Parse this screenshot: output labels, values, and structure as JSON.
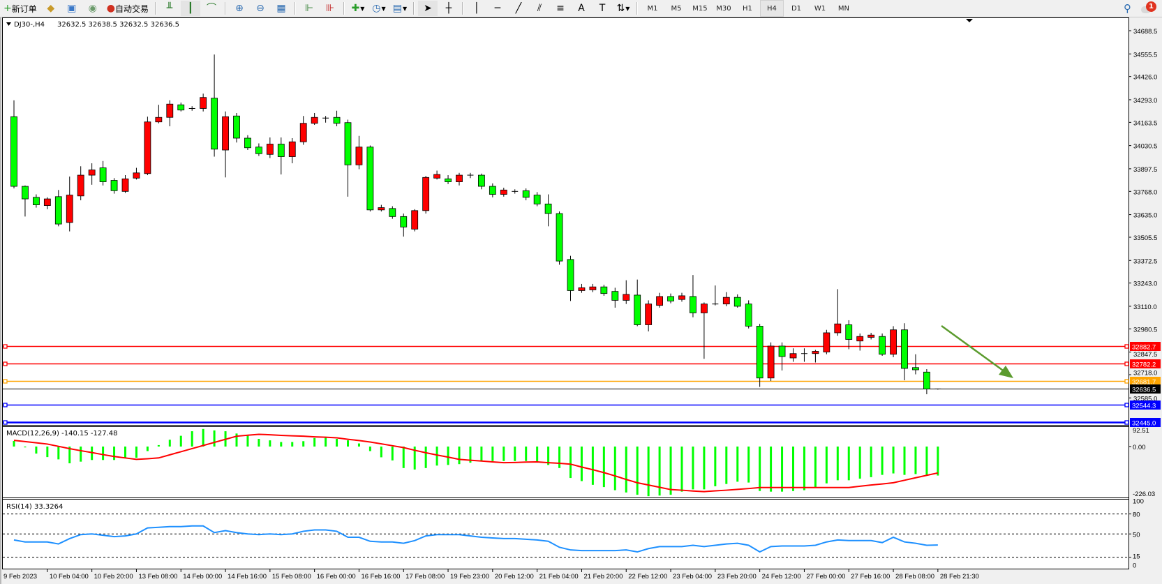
{
  "toolbar": {
    "new_order_label": "新订单",
    "auto_trading_label": "自动交易",
    "timeframes": [
      "M1",
      "M5",
      "M15",
      "M30",
      "H1",
      "H4",
      "D1",
      "W1",
      "MN"
    ],
    "active_timeframe": "H4",
    "notification_count": "1",
    "icons": [
      "new-order-icon",
      "market-watch-icon",
      "navigator-icon",
      "signals-icon",
      "auto-trading-icon",
      "bar-chart-icon",
      "candlestick-icon",
      "line-chart-icon",
      "zoom-in-icon",
      "zoom-out-icon",
      "tile-windows-icon",
      "chart-shift-icon",
      "autoscroll-icon",
      "indicators-icon",
      "periods-icon",
      "templates-icon",
      "cursor-icon",
      "crosshair-icon",
      "vertical-line-icon",
      "horizontal-line-icon",
      "trendline-icon",
      "fibonacci-icon",
      "fibo-expansion-icon",
      "text-icon",
      "text-label-icon",
      "arrows-icon",
      "search-icon",
      "notifications-icon"
    ]
  },
  "chart_header": {
    "symbol": "DJ30-,H4",
    "ohlc": "32632.5 32638.5 32632.5 32636.5"
  },
  "colors": {
    "bull_body": "#ff0000",
    "bear_body": "#00ff00",
    "wick": "#000000",
    "macd_hist": "#00ff00",
    "macd_signal": "#ff0000",
    "rsi_line": "#1e90ff",
    "arrow": "#5b9b2e"
  },
  "chart_data": {
    "type": "candlestick",
    "symbol": "DJ30-",
    "timeframe": "H4",
    "candles_ohlc": [
      [
        34196,
        34290,
        33785,
        33797
      ],
      [
        33797,
        33802,
        33624,
        33725
      ],
      [
        33734,
        33751,
        33675,
        33691
      ],
      [
        33687,
        33734,
        33666,
        33725
      ],
      [
        33738,
        33776,
        33568,
        33581
      ],
      [
        33590,
        33853,
        33539,
        33747
      ],
      [
        33742,
        33912,
        33717,
        33861
      ],
      [
        33861,
        33929,
        33806,
        33891
      ],
      [
        33903,
        33942,
        33802,
        33823
      ],
      [
        33831,
        33844,
        33755,
        33772
      ],
      [
        33768,
        33861,
        33759,
        33840
      ],
      [
        33844,
        33903,
        33836,
        33874
      ],
      [
        33870,
        34196,
        33861,
        34166
      ],
      [
        34166,
        34264,
        34158,
        34192
      ],
      [
        34192,
        34290,
        34141,
        34268
      ],
      [
        34264,
        34277,
        34226,
        34234
      ],
      [
        34243,
        34256,
        34230,
        34243
      ],
      [
        34243,
        34328,
        34226,
        34306
      ],
      [
        34302,
        34552,
        33967,
        34010
      ],
      [
        34005,
        34226,
        33848,
        34196
      ],
      [
        34200,
        34217,
        34048,
        34073
      ],
      [
        34073,
        34090,
        34005,
        34018
      ],
      [
        34022,
        34043,
        33971,
        33984
      ],
      [
        33980,
        34077,
        33959,
        34039
      ],
      [
        34039,
        34077,
        33865,
        33967
      ],
      [
        33967,
        34073,
        33929,
        34052
      ],
      [
        34052,
        34200,
        34035,
        34158
      ],
      [
        34158,
        34217,
        34149,
        34192
      ],
      [
        34188,
        34200,
        34162,
        34188
      ],
      [
        34192,
        34230,
        34141,
        34158
      ],
      [
        34162,
        34179,
        33738,
        33920
      ],
      [
        33920,
        34086,
        33895,
        34022
      ],
      [
        34022,
        34031,
        33653,
        33662
      ],
      [
        33662,
        33691,
        33653,
        33675
      ],
      [
        33670,
        33683,
        33611,
        33624
      ],
      [
        33624,
        33641,
        33509,
        33564
      ],
      [
        33552,
        33666,
        33539,
        33658
      ],
      [
        33658,
        33857,
        33641,
        33848
      ],
      [
        33844,
        33887,
        33836,
        33865
      ],
      [
        33840,
        33861,
        33810,
        33823
      ],
      [
        33823,
        33874,
        33802,
        33861
      ],
      [
        33861,
        33874,
        33844,
        33861
      ],
      [
        33861,
        33870,
        33780,
        33797
      ],
      [
        33797,
        33814,
        33734,
        33751
      ],
      [
        33751,
        33789,
        33738,
        33776
      ],
      [
        33768,
        33780,
        33755,
        33768
      ],
      [
        33772,
        33785,
        33717,
        33734
      ],
      [
        33747,
        33764,
        33683,
        33696
      ],
      [
        33696,
        33751,
        33568,
        33641
      ],
      [
        33641,
        33653,
        33348,
        33369
      ],
      [
        33378,
        33399,
        33140,
        33200
      ],
      [
        33200,
        33238,
        33187,
        33216
      ],
      [
        33204,
        33238,
        33191,
        33221
      ],
      [
        33221,
        33233,
        33170,
        33183
      ],
      [
        33195,
        33216,
        33102,
        33144
      ],
      [
        33144,
        33259,
        33123,
        33178
      ],
      [
        33174,
        33263,
        32996,
        33004
      ],
      [
        33004,
        33144,
        32966,
        33123
      ],
      [
        33115,
        33187,
        33102,
        33166
      ],
      [
        33166,
        33183,
        33127,
        33140
      ],
      [
        33149,
        33187,
        33136,
        33170
      ],
      [
        33166,
        33289,
        33047,
        33072
      ],
      [
        33072,
        33132,
        32809,
        33123
      ],
      [
        33123,
        33229,
        33115,
        33123
      ],
      [
        33123,
        33191,
        33110,
        33161
      ],
      [
        33161,
        33178,
        33102,
        33110
      ],
      [
        33123,
        33144,
        32983,
        32996
      ],
      [
        32996,
        33009,
        32648,
        32699
      ],
      [
        32699,
        32903,
        32682,
        32882
      ],
      [
        32882,
        32903,
        32742,
        32822
      ],
      [
        32814,
        32869,
        32792,
        32839
      ],
      [
        32839,
        32869,
        32792,
        32839
      ],
      [
        32839,
        32860,
        32788,
        32852
      ],
      [
        32848,
        32975,
        32835,
        32958
      ],
      [
        32958,
        33208,
        32941,
        33009
      ],
      [
        33004,
        33030,
        32864,
        32920
      ],
      [
        32911,
        32954,
        32856,
        32937
      ],
      [
        32932,
        32958,
        32920,
        32945
      ],
      [
        32937,
        32954,
        32826,
        32835
      ],
      [
        32835,
        32996,
        32818,
        32975
      ],
      [
        32975,
        33013,
        32686,
        32754
      ],
      [
        32759,
        32835,
        32720,
        32746
      ],
      [
        32733,
        32750,
        32606,
        32636
      ],
      [
        32632.5,
        32638.5,
        32632.5,
        32636.5
      ]
    ],
    "price_axis": {
      "range": [
        32429,
        34752
      ],
      "ticks": [
        "34688.5",
        "34555.5",
        "34426.0",
        "34293.0",
        "34163.5",
        "34030.5",
        "33897.5",
        "33768.0",
        "33635.0",
        "33505.5",
        "33372.5",
        "33243.0",
        "33110.0",
        "32980.5",
        "32847.5",
        "32718.0",
        "32585.0"
      ]
    },
    "levels": [
      {
        "price": 32882.7,
        "label": "32882.7",
        "color": "#ff0000"
      },
      {
        "price": 32782.2,
        "label": "32782.2",
        "color": "#ff0000"
      },
      {
        "price": 32681.7,
        "label": "32681.7",
        "color": "#ffa500"
      },
      {
        "price": 32636.5,
        "label": "32636.5",
        "color": "#000000"
      },
      {
        "price": 32544.3,
        "label": "32544.3",
        "color": "#0000ff"
      },
      {
        "price": 32445.0,
        "label": "32445.0",
        "color": "#0000ff"
      }
    ],
    "time_labels": [
      "9 Feb 2023",
      "10 Feb 04:00",
      "10 Feb 20:00",
      "13 Feb 08:00",
      "14 Feb 00:00",
      "14 Feb 16:00",
      "15 Feb 08:00",
      "16 Feb 00:00",
      "16 Feb 16:00",
      "17 Feb 08:00",
      "19 Feb 23:00",
      "20 Feb 12:00",
      "21 Feb 04:00",
      "21 Feb 20:00",
      "22 Feb 12:00",
      "23 Feb 04:00",
      "23 Feb 20:00",
      "24 Feb 12:00",
      "27 Feb 00:00",
      "27 Feb 16:00",
      "28 Feb 08:00",
      "28 Feb 21:30"
    ],
    "macd": {
      "label": "MACD(12,26,9) -140.15 -127.48",
      "axis_labels": [
        {
          "value": 92.51,
          "text": "92.51"
        },
        {
          "value": 0,
          "text": "0.00"
        },
        {
          "value": -226.03,
          "text": "-226.03"
        }
      ],
      "histogram": [
        27,
        -4,
        -34,
        -51,
        -62,
        -81,
        -73,
        -65,
        -65,
        -65,
        -54,
        -54,
        -22,
        7,
        33,
        52,
        74,
        85,
        78,
        74,
        63,
        52,
        37,
        30,
        22,
        22,
        26,
        41,
        44,
        37,
        30,
        15,
        -22,
        -52,
        -67,
        -104,
        -111,
        -104,
        -92,
        -89,
        -85,
        -78,
        -70,
        -70,
        -70,
        -70,
        -70,
        -74,
        -89,
        -104,
        -152,
        -167,
        -185,
        -196,
        -211,
        -222,
        -233,
        -240,
        -237,
        -233,
        -218,
        -207,
        -207,
        -192,
        -181,
        -170,
        -174,
        -215,
        -218,
        -218,
        -215,
        -211,
        -200,
        -178,
        -163,
        -163,
        -155,
        -148,
        -137,
        -130,
        -137,
        -133,
        -141,
        -140.15
      ],
      "signal": [
        30,
        24,
        18,
        12,
        1,
        -10,
        -20,
        -29,
        -39,
        -48,
        -55,
        -62,
        -59,
        -55,
        -40,
        -25,
        -10,
        5,
        20,
        35,
        50,
        55,
        59,
        57,
        54,
        52,
        50,
        47,
        45,
        42,
        35,
        29,
        22,
        13,
        4,
        -5,
        -18,
        -30,
        -41,
        -51,
        -62,
        -66,
        -70,
        -74,
        -78,
        -77,
        -75,
        -74,
        -78,
        -81,
        -85,
        -99,
        -112,
        -126,
        -142,
        -159,
        -175,
        -186,
        -197,
        -208,
        -211,
        -215,
        -218,
        -214,
        -211,
        -207,
        -203,
        -198,
        -198,
        -198,
        -198,
        -198,
        -198,
        -198,
        -198,
        -198,
        -192,
        -186,
        -181,
        -175,
        -163,
        -151,
        -139,
        -127.48
      ]
    },
    "rsi": {
      "label": "RSI(14) 33.3264",
      "levels": [
        80,
        50,
        15
      ],
      "axis_labels": [
        {
          "value": 100,
          "text": "100"
        },
        {
          "value": 80,
          "text": "80"
        },
        {
          "value": 50,
          "text": "50"
        },
        {
          "value": 15,
          "text": "15"
        },
        {
          "value": 0,
          "text": "0"
        }
      ],
      "values": [
        41,
        38,
        38,
        38,
        35,
        43,
        49,
        50,
        48,
        46,
        47,
        50,
        59,
        60,
        61,
        61,
        62,
        62,
        52,
        55,
        52,
        50,
        49,
        50,
        49,
        50,
        54,
        56,
        56,
        54,
        45,
        45,
        39,
        38,
        38,
        36,
        40,
        47,
        49,
        49,
        49,
        47,
        45,
        44,
        43,
        43,
        42,
        41,
        39,
        30,
        26,
        25,
        25,
        25,
        25,
        26,
        23,
        28,
        31,
        31,
        31,
        33,
        31,
        33,
        35,
        36,
        33,
        23,
        31,
        32,
        32,
        32,
        33,
        38,
        41,
        40,
        40,
        40,
        37,
        45,
        38,
        36,
        33,
        33.3264
      ]
    }
  }
}
